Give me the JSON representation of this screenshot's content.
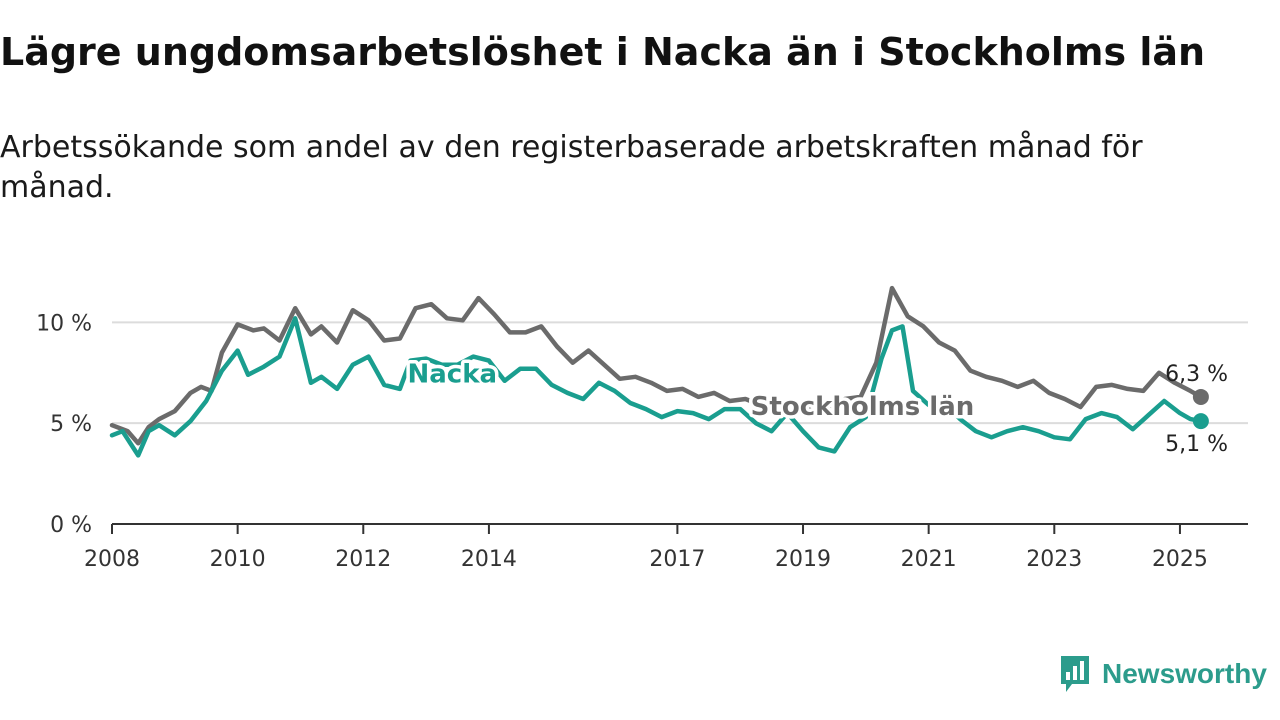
{
  "title": "Lägre ungdomsarbetslöshet i Nacka än i Stockholms län",
  "subtitle": "Arbetssökande som andel av den registerbaserade arbetskraften månad för månad.",
  "brand": {
    "name": "Newsworthy",
    "icon": "newsworthy-logo-icon",
    "color": "#2c9c8c"
  },
  "chart_data": {
    "type": "line",
    "x_ticks": [
      "2008",
      "2010",
      "2012",
      "2014",
      "2017",
      "2019",
      "2021",
      "2023",
      "2025"
    ],
    "y_ticks": [
      {
        "value": 0,
        "label": "0 %"
      },
      {
        "value": 5,
        "label": "5 %"
      },
      {
        "value": 10,
        "label": "10 %"
      }
    ],
    "ylim": [
      0,
      12
    ],
    "xlim": [
      "2008-01",
      "2026-02"
    ],
    "grid": true,
    "series": [
      {
        "name": "Stockholms län",
        "color": "#6b6b6b",
        "end_label": "6,3 %",
        "label_at": "2018-03",
        "points": [
          [
            "2008-01",
            4.9
          ],
          [
            "2008-04",
            4.6
          ],
          [
            "2008-06",
            4.0
          ],
          [
            "2008-08",
            4.8
          ],
          [
            "2008-10",
            5.2
          ],
          [
            "2009-01",
            5.6
          ],
          [
            "2009-04",
            6.5
          ],
          [
            "2009-06",
            6.8
          ],
          [
            "2009-08",
            6.6
          ],
          [
            "2009-10",
            8.5
          ],
          [
            "2010-01",
            9.9
          ],
          [
            "2010-04",
            9.6
          ],
          [
            "2010-06",
            9.7
          ],
          [
            "2010-09",
            9.1
          ],
          [
            "2010-12",
            10.7
          ],
          [
            "2011-03",
            9.4
          ],
          [
            "2011-05",
            9.8
          ],
          [
            "2011-08",
            9.0
          ],
          [
            "2011-11",
            10.6
          ],
          [
            "2012-02",
            10.1
          ],
          [
            "2012-05",
            9.1
          ],
          [
            "2012-08",
            9.2
          ],
          [
            "2012-11",
            10.7
          ],
          [
            "2013-02",
            10.9
          ],
          [
            "2013-05",
            10.2
          ],
          [
            "2013-08",
            10.1
          ],
          [
            "2013-11",
            11.2
          ],
          [
            "2014-02",
            10.4
          ],
          [
            "2014-05",
            9.5
          ],
          [
            "2014-08",
            9.5
          ],
          [
            "2014-11",
            9.8
          ],
          [
            "2015-02",
            8.8
          ],
          [
            "2015-05",
            8.0
          ],
          [
            "2015-08",
            8.6
          ],
          [
            "2015-11",
            7.9
          ],
          [
            "2016-02",
            7.2
          ],
          [
            "2016-05",
            7.3
          ],
          [
            "2016-08",
            7.0
          ],
          [
            "2016-11",
            6.6
          ],
          [
            "2017-02",
            6.7
          ],
          [
            "2017-05",
            6.3
          ],
          [
            "2017-08",
            6.5
          ],
          [
            "2017-11",
            6.1
          ],
          [
            "2018-02",
            6.2
          ],
          [
            "2018-05",
            5.9
          ],
          [
            "2018-08",
            6.0
          ],
          [
            "2018-11",
            5.8
          ],
          [
            "2019-02",
            5.9
          ],
          [
            "2019-04",
            5.5
          ],
          [
            "2019-06",
            5.7
          ],
          [
            "2019-09",
            6.2
          ],
          [
            "2019-12",
            6.3
          ],
          [
            "2020-03",
            8.0
          ],
          [
            "2020-06",
            11.7
          ],
          [
            "2020-09",
            10.3
          ],
          [
            "2020-12",
            9.8
          ],
          [
            "2021-03",
            9.0
          ],
          [
            "2021-06",
            8.6
          ],
          [
            "2021-09",
            7.6
          ],
          [
            "2021-12",
            7.3
          ],
          [
            "2022-03",
            7.1
          ],
          [
            "2022-06",
            6.8
          ],
          [
            "2022-09",
            7.1
          ],
          [
            "2022-12",
            6.5
          ],
          [
            "2023-03",
            6.2
          ],
          [
            "2023-06",
            5.8
          ],
          [
            "2023-09",
            6.8
          ],
          [
            "2023-12",
            6.9
          ],
          [
            "2024-03",
            6.7
          ],
          [
            "2024-06",
            6.6
          ],
          [
            "2024-09",
            7.5
          ],
          [
            "2024-12",
            7.0
          ],
          [
            "2025-03",
            6.6
          ],
          [
            "2025-05",
            6.3
          ]
        ]
      },
      {
        "name": "Nacka",
        "color": "#1a9e8f",
        "end_label": "5,1 %",
        "label_at": "2013-06",
        "points": [
          [
            "2008-01",
            4.4
          ],
          [
            "2008-03",
            4.6
          ],
          [
            "2008-06",
            3.4
          ],
          [
            "2008-08",
            4.6
          ],
          [
            "2008-10",
            4.9
          ],
          [
            "2009-01",
            4.4
          ],
          [
            "2009-04",
            5.1
          ],
          [
            "2009-07",
            6.1
          ],
          [
            "2009-10",
            7.6
          ],
          [
            "2010-01",
            8.6
          ],
          [
            "2010-03",
            7.4
          ],
          [
            "2010-06",
            7.8
          ],
          [
            "2010-09",
            8.3
          ],
          [
            "2010-12",
            10.2
          ],
          [
            "2011-03",
            7.0
          ],
          [
            "2011-05",
            7.3
          ],
          [
            "2011-08",
            6.7
          ],
          [
            "2011-11",
            7.9
          ],
          [
            "2012-02",
            8.3
          ],
          [
            "2012-05",
            6.9
          ],
          [
            "2012-08",
            6.7
          ],
          [
            "2012-10",
            8.1
          ],
          [
            "2013-01",
            8.2
          ],
          [
            "2013-04",
            7.9
          ],
          [
            "2013-07",
            7.9
          ],
          [
            "2013-10",
            8.3
          ],
          [
            "2014-01",
            8.1
          ],
          [
            "2014-04",
            7.1
          ],
          [
            "2014-07",
            7.7
          ],
          [
            "2014-10",
            7.7
          ],
          [
            "2015-01",
            6.9
          ],
          [
            "2015-04",
            6.5
          ],
          [
            "2015-07",
            6.2
          ],
          [
            "2015-10",
            7.0
          ],
          [
            "2016-01",
            6.6
          ],
          [
            "2016-04",
            6.0
          ],
          [
            "2016-07",
            5.7
          ],
          [
            "2016-10",
            5.3
          ],
          [
            "2017-01",
            5.6
          ],
          [
            "2017-04",
            5.5
          ],
          [
            "2017-07",
            5.2
          ],
          [
            "2017-10",
            5.7
          ],
          [
            "2018-01",
            5.7
          ],
          [
            "2018-04",
            5.0
          ],
          [
            "2018-07",
            4.6
          ],
          [
            "2018-10",
            5.5
          ],
          [
            "2019-01",
            4.6
          ],
          [
            "2019-04",
            3.8
          ],
          [
            "2019-07",
            3.6
          ],
          [
            "2019-10",
            4.8
          ],
          [
            "2020-01",
            5.3
          ],
          [
            "2020-04",
            8.2
          ],
          [
            "2020-06",
            9.6
          ],
          [
            "2020-08",
            9.8
          ],
          [
            "2020-10",
            6.6
          ],
          [
            "2021-01",
            5.9
          ],
          [
            "2021-04",
            6.0
          ],
          [
            "2021-07",
            5.2
          ],
          [
            "2021-10",
            4.6
          ],
          [
            "2022-01",
            4.3
          ],
          [
            "2022-04",
            4.6
          ],
          [
            "2022-07",
            4.8
          ],
          [
            "2022-10",
            4.6
          ],
          [
            "2023-01",
            4.3
          ],
          [
            "2023-04",
            4.2
          ],
          [
            "2023-07",
            5.2
          ],
          [
            "2023-10",
            5.5
          ],
          [
            "2024-01",
            5.3
          ],
          [
            "2024-04",
            4.7
          ],
          [
            "2024-07",
            5.4
          ],
          [
            "2024-10",
            6.1
          ],
          [
            "2025-01",
            5.5
          ],
          [
            "2025-03",
            5.2
          ],
          [
            "2025-05",
            5.1
          ]
        ]
      }
    ]
  }
}
